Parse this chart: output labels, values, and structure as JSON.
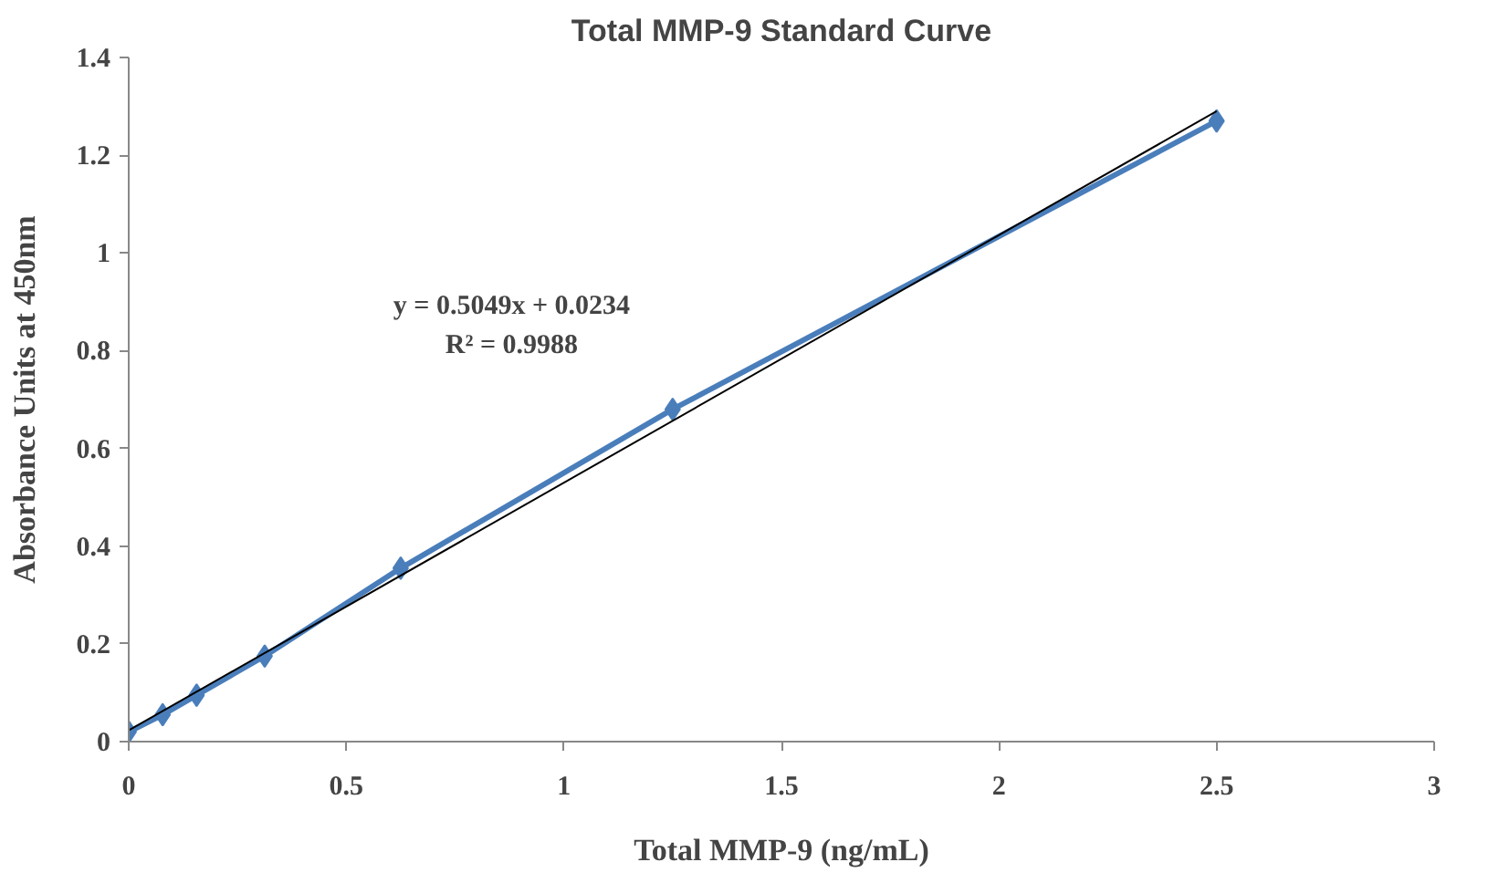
{
  "chart_data": {
    "type": "line",
    "title": "Total MMP-9 Standard Curve",
    "xlabel": "Total MMP-9 (ng/mL)",
    "ylabel": "Absorbance Units at 450nm",
    "x": [
      0,
      0.078,
      0.156,
      0.3125,
      0.625,
      1.25,
      2.5
    ],
    "series": [
      {
        "color": "#4a7ebb",
        "marker": "diamond",
        "values": [
          0.02,
          0.055,
          0.095,
          0.175,
          0.355,
          0.68,
          1.27
        ]
      },
      {
        "type": "line",
        "color": "#000000",
        "marker": "none",
        "x": [
          0,
          2.5
        ],
        "values": [
          0.023,
          1.29
        ]
      }
    ],
    "xlim": [
      0,
      3
    ],
    "xticks": [
      0,
      0.5,
      1,
      1.5,
      2,
      2.5,
      3
    ],
    "ylim": [
      0,
      1.4
    ],
    "yticks": [
      0,
      0.2,
      0.4,
      0.6,
      0.8,
      1,
      1.2,
      1.4
    ],
    "grid": false,
    "annotations": [
      "y = 0.5049x + 0.0234",
      "R² = 0.9988"
    ]
  }
}
